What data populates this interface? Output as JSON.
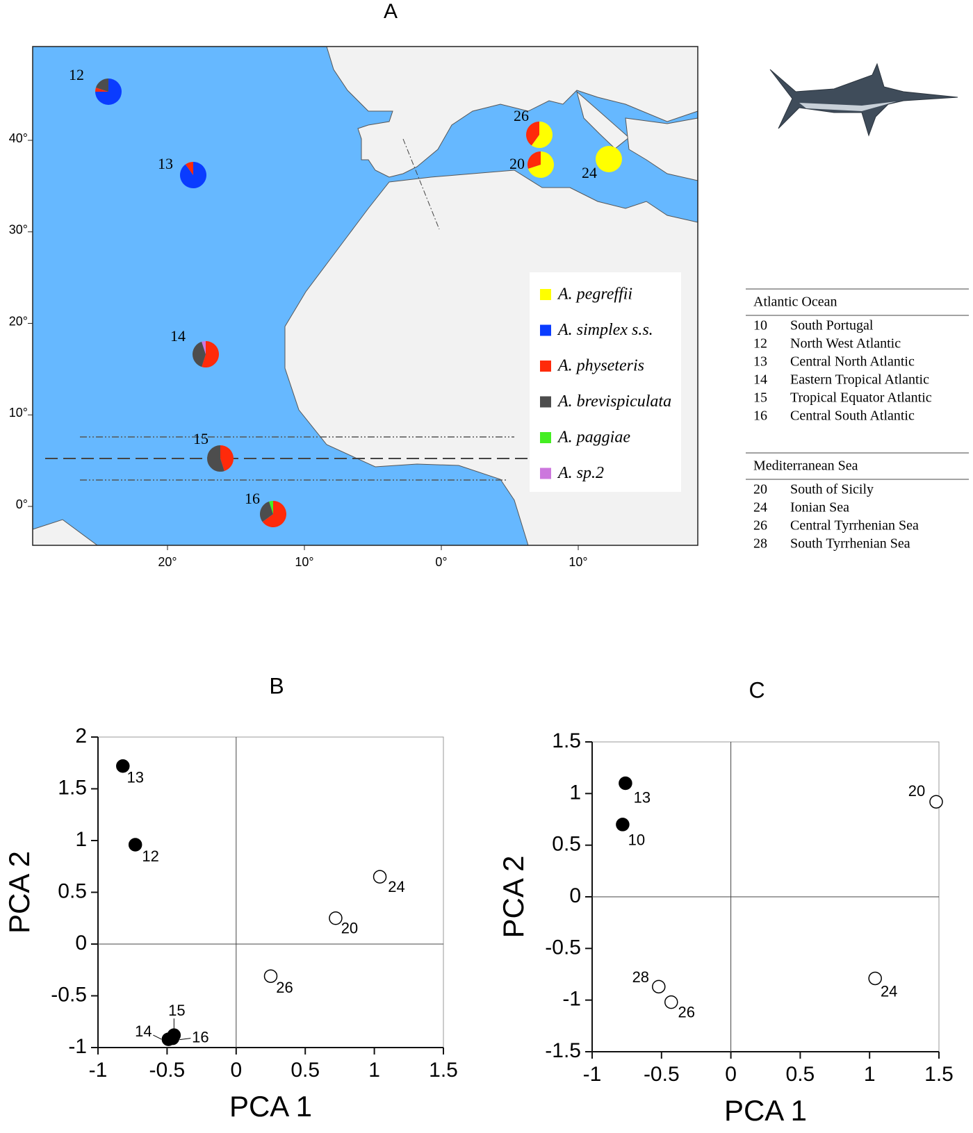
{
  "map": {
    "title": "A",
    "lat_ticks": [
      {
        "value": 40,
        "label": "40°"
      },
      {
        "value": 30,
        "label": "30°"
      },
      {
        "value": 20,
        "label": "20°"
      },
      {
        "value": 10,
        "label": "10°"
      },
      {
        "value": 0,
        "label": "0°"
      }
    ],
    "lon_ticks": [
      {
        "value": -20,
        "label": "20°"
      },
      {
        "value": -10,
        "label": "10°"
      },
      {
        "value": 0,
        "label": "0°"
      },
      {
        "value": 10,
        "label": "10°"
      }
    ],
    "legend": [
      {
        "name": "A. pegreffii",
        "color": "#ffff00"
      },
      {
        "name": "A. simplex s.s.",
        "color": "#0a3cff"
      },
      {
        "name": "A. physeteris",
        "color": "#ff2a0a"
      },
      {
        "name": "A. brevispiculata",
        "color": "#4d4d4d"
      },
      {
        "name": "A. paggiae",
        "color": "#44ee22"
      },
      {
        "name": "A. sp.2",
        "color": "#cc77dd"
      }
    ],
    "sites": [
      {
        "label": "12",
        "shares": [
          0,
          75,
          5,
          20,
          0,
          0
        ]
      },
      {
        "label": "13",
        "shares": [
          0,
          90,
          10,
          0,
          0,
          0
        ]
      },
      {
        "label": "14",
        "shares": [
          0,
          0,
          55,
          40,
          0,
          5
        ]
      },
      {
        "label": "15",
        "shares": [
          0,
          0,
          45,
          55,
          0,
          0
        ]
      },
      {
        "label": "16",
        "shares": [
          0,
          0,
          65,
          30,
          5,
          0
        ]
      },
      {
        "label": "26",
        "shares": [
          60,
          0,
          40,
          0,
          0,
          0
        ]
      },
      {
        "label": "20",
        "shares": [
          70,
          0,
          30,
          0,
          0,
          0
        ]
      },
      {
        "label": "24",
        "shares": [
          100,
          0,
          0,
          0,
          0,
          0
        ]
      }
    ]
  },
  "table": {
    "groups": [
      {
        "title": "Atlantic Ocean",
        "rows": [
          [
            "10",
            "South Portugal"
          ],
          [
            "12",
            "North West Atlantic"
          ],
          [
            "13",
            "Central North Atlantic"
          ],
          [
            "14",
            "Eastern Tropical Atlantic"
          ],
          [
            "15",
            "Tropical Equator Atlantic"
          ],
          [
            "16",
            "Central South Atlantic"
          ]
        ]
      },
      {
        "title": "Mediterranean Sea",
        "rows": [
          [
            "20",
            "South of Sicily"
          ],
          [
            "24",
            "Ionian Sea"
          ],
          [
            "26",
            "Central Tyrrhenian Sea"
          ],
          [
            "28",
            "South Tyrrhenian Sea"
          ]
        ]
      }
    ]
  },
  "chart_data": [
    {
      "type": "scatter",
      "title": "B",
      "x_label": "PCA 1",
      "y_label": "PCA 2",
      "xlim": [
        -1,
        1.5
      ],
      "ylim": [
        -1,
        2
      ],
      "xticks": [
        -1,
        -0.5,
        0,
        0.5,
        1,
        1.5
      ],
      "yticks": [
        -1,
        -0.5,
        0,
        0.5,
        1,
        1.5,
        2
      ],
      "point_labels": [
        "13",
        "12",
        "24",
        "20",
        "26",
        "15",
        "14",
        "16"
      ],
      "x": [
        -0.82,
        -0.73,
        1.04,
        0.72,
        0.25,
        -0.45,
        -0.49,
        -0.46
      ],
      "y": [
        1.72,
        0.96,
        0.65,
        0.25,
        -0.31,
        -0.88,
        -0.92,
        -0.91
      ],
      "filled": [
        true,
        true,
        false,
        false,
        false,
        true,
        true,
        true
      ]
    },
    {
      "type": "scatter",
      "title": "C",
      "x_label": "PCA 1",
      "y_label": "PCA 2",
      "xlim": [
        -1,
        1.5
      ],
      "ylim": [
        -1.5,
        1.5
      ],
      "xticks": [
        -1,
        -0.5,
        0,
        0.5,
        1,
        1.5
      ],
      "yticks": [
        -1.5,
        -1,
        -0.5,
        0,
        0.5,
        1,
        1.5
      ],
      "point_labels": [
        "13",
        "10",
        "20",
        "28",
        "26",
        "24"
      ],
      "x": [
        -0.76,
        -0.78,
        1.48,
        -0.52,
        -0.43,
        1.04
      ],
      "y": [
        1.1,
        0.7,
        0.92,
        -0.87,
        -1.02,
        -0.79
      ],
      "filled": [
        true,
        true,
        false,
        false,
        false,
        false
      ]
    }
  ]
}
